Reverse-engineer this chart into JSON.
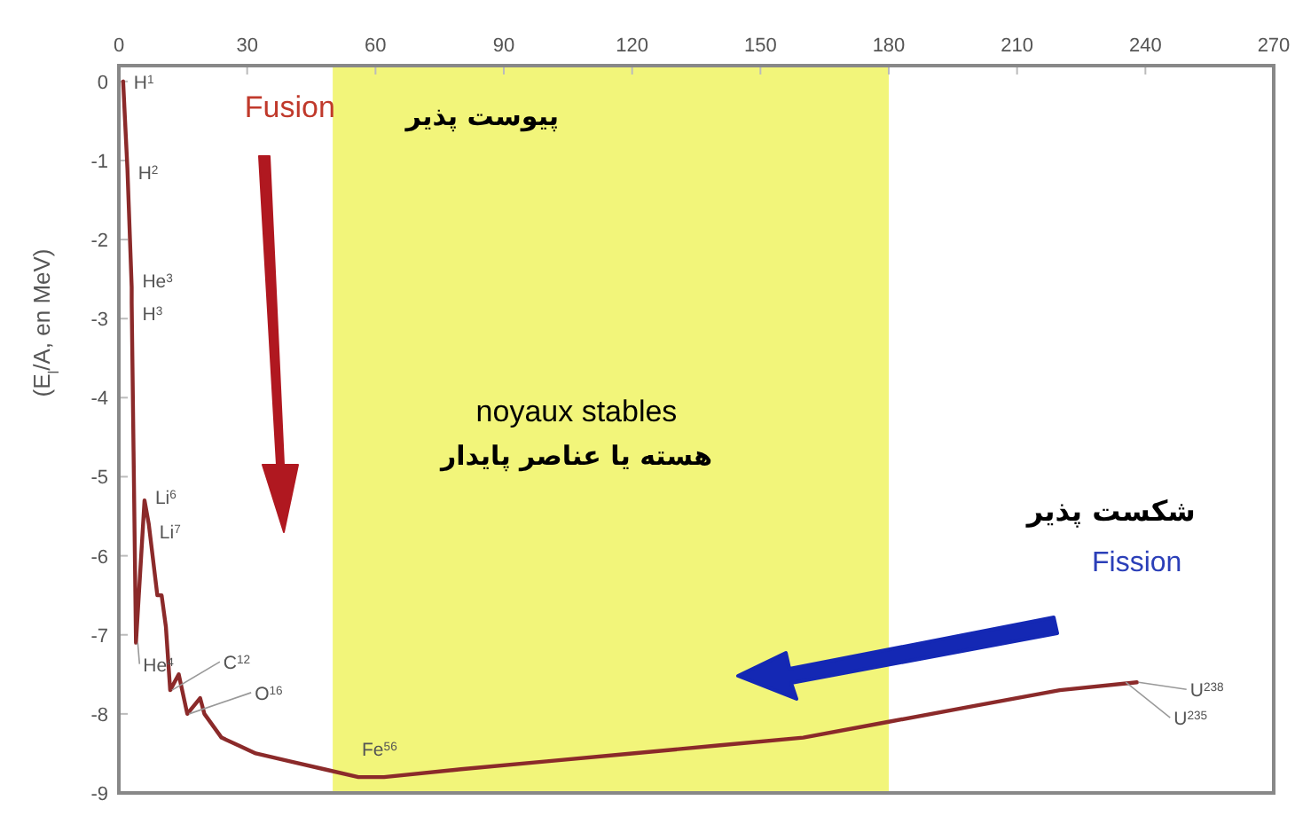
{
  "chart_data": {
    "type": "line",
    "ylabel": "(E$_{l}$/A, en MeV)",
    "series": [
      {
        "color": "#8b2a2a",
        "x": [
          1,
          2,
          3,
          3,
          4,
          6,
          7,
          9,
          10,
          11,
          12,
          14,
          16,
          19,
          20,
          24,
          28,
          32,
          40,
          48,
          56,
          62,
          80,
          100,
          120,
          140,
          160,
          180,
          200,
          220,
          238
        ],
        "values": [
          0,
          -1.1,
          -2.6,
          -2.8,
          -7.1,
          -5.3,
          -5.6,
          -6.5,
          -6.5,
          -6.9,
          -7.7,
          -7.5,
          -8.0,
          -7.8,
          -8.0,
          -8.3,
          -8.4,
          -8.5,
          -8.6,
          -8.7,
          -8.8,
          -8.8,
          -8.7,
          -8.6,
          -8.5,
          -8.4,
          -8.3,
          -8.1,
          -7.9,
          -7.7,
          -7.6
        ]
      }
    ],
    "xlim": [
      0,
      270
    ],
    "ylim": [
      -9,
      0.2
    ],
    "xticks": [
      0,
      30,
      60,
      90,
      120,
      150,
      180,
      210,
      240,
      270
    ],
    "yticks": [
      -9,
      -8,
      -7,
      -6,
      -5,
      -4,
      -3,
      -2,
      -1,
      0
    ],
    "bands": [
      {
        "axis": "x",
        "from": 50,
        "to": 180,
        "color": "#f2f57a"
      }
    ],
    "grid": false,
    "marker": "none",
    "line_style": "solid",
    "annotations": [
      {
        "text": "H$^{1}$",
        "x": 1,
        "y": 0
      },
      {
        "text": "H$^{2}$",
        "x": 2,
        "y": -1.1
      },
      {
        "text": "He$^{3}$",
        "x": 3,
        "y": -2.6
      },
      {
        "text": "H$^{3}$",
        "x": 3,
        "y": -2.8
      },
      {
        "text": "Li$^{6}$",
        "x": 6,
        "y": -5.3
      },
      {
        "text": "Li$^{7}$",
        "x": 7,
        "y": -5.6
      },
      {
        "text": "He$^{4}$",
        "x": 4,
        "y": -7.1
      },
      {
        "text": "C$^{12}$",
        "x": 12,
        "y": -7.7
      },
      {
        "text": "O$^{16}$",
        "x": 16,
        "y": -8.0
      },
      {
        "text": "Fe$^{56}$",
        "x": 56,
        "y": -8.8
      },
      {
        "text": "U$^{238}$",
        "x": 238,
        "y": -7.6
      },
      {
        "text": "U$^{235}$",
        "x": 235,
        "y": -7.6
      },
      "Fusion",
      "پیوست پذیر",
      "noyaux stables",
      "هسته یا عناصر پایدار",
      "شکست پذیر",
      "Fission"
    ]
  }
}
